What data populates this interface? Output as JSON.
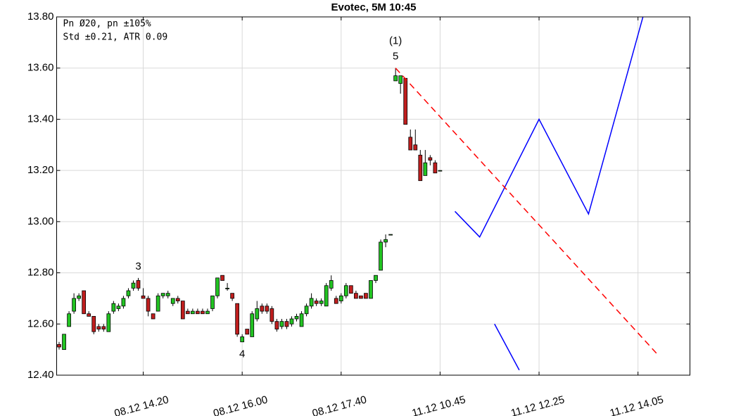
{
  "chart_data": {
    "type": "candlestick",
    "title": "Evotec, 5M 10:45",
    "annotations": [
      "Pn  Ø20, pn ±105%",
      "Std ±0.21, ATR 0.09"
    ],
    "up_color": "#22c322",
    "down_color": "#c01e1e",
    "grid": true,
    "xlim": [
      -0.5,
      127.5
    ],
    "xticks": [
      {
        "value": 17,
        "label": "08.12 14.20"
      },
      {
        "value": 37,
        "label": "08.12 16.00"
      },
      {
        "value": 57,
        "label": "08.12 17.40"
      },
      {
        "value": 77,
        "label": "11.12 10.45"
      },
      {
        "value": 97,
        "label": "11.12 12.25"
      },
      {
        "value": 117,
        "label": "11.12 14.05"
      }
    ],
    "ylim": [
      12.4,
      13.8
    ],
    "yticks": [
      {
        "value": 12.4,
        "label": "12.40"
      },
      {
        "value": 12.6,
        "label": "12.60"
      },
      {
        "value": 12.8,
        "label": "12.80"
      },
      {
        "value": 13.0,
        "label": "13.00"
      },
      {
        "value": 13.2,
        "label": "13.20"
      },
      {
        "value": 13.4,
        "label": "13.40"
      },
      {
        "value": 13.6,
        "label": "13.60"
      },
      {
        "value": 13.8,
        "label": "13.80"
      }
    ],
    "x": [
      0,
      1,
      2,
      3,
      4,
      5,
      6,
      7,
      8,
      9,
      10,
      11,
      12,
      13,
      14,
      15,
      16,
      17,
      18,
      19,
      20,
      21,
      22,
      23,
      24,
      25,
      26,
      27,
      28,
      29,
      30,
      31,
      32,
      33,
      34,
      35,
      36,
      37,
      38,
      39,
      40,
      41,
      42,
      43,
      44,
      45,
      46,
      47,
      48,
      49,
      50,
      51,
      52,
      53,
      54,
      55,
      56,
      57,
      58,
      59,
      60,
      61,
      62,
      63,
      64,
      65,
      66,
      67,
      68,
      69,
      70,
      71,
      72,
      73,
      74,
      75,
      76,
      77
    ],
    "open": [
      12.52,
      12.5,
      12.59,
      12.65,
      12.7,
      12.73,
      12.64,
      12.63,
      12.59,
      12.59,
      12.57,
      12.65,
      12.66,
      12.67,
      12.71,
      12.74,
      12.77,
      12.71,
      12.7,
      12.64,
      12.65,
      12.71,
      12.71,
      12.68,
      12.7,
      12.69,
      12.65,
      12.64,
      12.65,
      12.65,
      12.64,
      12.66,
      12.71,
      12.79,
      12.74,
      12.72,
      12.68,
      12.53,
      12.58,
      12.55,
      12.62,
      12.67,
      12.67,
      12.66,
      12.61,
      12.59,
      12.61,
      12.6,
      12.62,
      12.59,
      12.64,
      12.67,
      12.69,
      12.68,
      12.67,
      12.74,
      12.7,
      12.69,
      12.71,
      12.75,
      12.72,
      12.71,
      12.72,
      12.7,
      12.77,
      12.81,
      12.92,
      12.95,
      13.55,
      13.54,
      13.56,
      13.33,
      13.3,
      13.26,
      13.18,
      13.25,
      13.23,
      13.2
    ],
    "high": [
      12.53,
      12.56,
      12.65,
      12.72,
      12.72,
      12.73,
      12.65,
      12.63,
      12.6,
      12.6,
      12.65,
      12.69,
      12.68,
      12.71,
      12.74,
      12.77,
      12.78,
      12.74,
      12.71,
      12.64,
      12.72,
      12.72,
      12.73,
      12.7,
      12.71,
      12.69,
      12.66,
      12.66,
      12.66,
      12.66,
      12.66,
      12.71,
      12.78,
      12.79,
      12.76,
      12.72,
      12.68,
      12.56,
      12.58,
      12.65,
      12.69,
      12.68,
      12.68,
      12.67,
      12.62,
      12.62,
      12.62,
      12.63,
      12.64,
      12.65,
      12.68,
      12.72,
      12.7,
      12.7,
      12.76,
      12.79,
      12.71,
      12.72,
      12.76,
      12.75,
      12.73,
      12.71,
      12.72,
      12.77,
      12.79,
      12.93,
      12.95,
      12.95,
      13.6,
      13.57,
      13.56,
      13.36,
      13.36,
      13.28,
      13.28,
      13.26,
      13.24,
      13.2
    ],
    "low": [
      12.5,
      12.5,
      12.59,
      12.64,
      12.69,
      12.64,
      12.63,
      12.56,
      12.57,
      12.57,
      12.57,
      12.64,
      12.65,
      12.66,
      12.7,
      12.73,
      12.73,
      12.7,
      12.63,
      12.62,
      12.65,
      12.7,
      12.7,
      12.67,
      12.68,
      12.62,
      12.64,
      12.64,
      12.64,
      12.64,
      12.64,
      12.65,
      12.7,
      12.77,
      12.73,
      12.69,
      12.55,
      12.53,
      12.56,
      12.55,
      12.61,
      12.64,
      12.64,
      12.6,
      12.57,
      12.58,
      12.58,
      12.59,
      12.61,
      12.59,
      12.63,
      12.66,
      12.67,
      12.67,
      12.67,
      12.73,
      12.68,
      12.68,
      12.7,
      12.72,
      12.7,
      12.7,
      12.7,
      12.7,
      12.76,
      12.81,
      12.9,
      12.95,
      13.55,
      13.5,
      13.38,
      13.28,
      13.28,
      13.16,
      13.18,
      13.22,
      13.19,
      13.2
    ],
    "close": [
      12.51,
      12.56,
      12.64,
      12.7,
      12.71,
      12.64,
      12.63,
      12.57,
      12.58,
      12.58,
      12.64,
      12.68,
      12.67,
      12.7,
      12.73,
      12.76,
      12.74,
      12.7,
      12.65,
      12.62,
      12.71,
      12.72,
      12.72,
      12.7,
      12.69,
      12.62,
      12.64,
      12.65,
      12.64,
      12.64,
      12.65,
      12.71,
      12.78,
      12.77,
      12.74,
      12.7,
      12.56,
      12.55,
      12.56,
      12.64,
      12.66,
      12.65,
      12.65,
      12.61,
      12.58,
      12.61,
      12.59,
      12.62,
      12.63,
      12.64,
      12.67,
      12.7,
      12.68,
      12.69,
      12.75,
      12.77,
      12.68,
      12.71,
      12.75,
      12.72,
      12.7,
      12.7,
      12.7,
      12.77,
      12.79,
      12.92,
      12.93,
      12.95,
      13.57,
      13.57,
      13.38,
      13.28,
      13.28,
      13.16,
      13.23,
      13.24,
      13.19,
      13.2
    ],
    "lines": [
      {
        "color": "#0000ff",
        "dashed": false,
        "x": [
          80,
          85,
          97,
          107,
          118
        ],
        "values": [
          13.04,
          12.94,
          13.4,
          13.03,
          13.8
        ]
      },
      {
        "color": "#0000ff",
        "dashed": false,
        "x": [
          88,
          93
        ],
        "values": [
          12.6,
          12.42
        ]
      },
      {
        "color": "#ff0000",
        "dashed": true,
        "x": [
          68,
          121
        ],
        "values": [
          13.6,
          12.48
        ]
      }
    ],
    "wave_labels": [
      {
        "label": "3",
        "x": 16,
        "position": "above"
      },
      {
        "label": "4",
        "x": 37,
        "position": "below"
      },
      {
        "label": "5",
        "x": 68,
        "position": "above"
      },
      {
        "label": "(1)",
        "x": 68,
        "position": "above"
      }
    ]
  }
}
